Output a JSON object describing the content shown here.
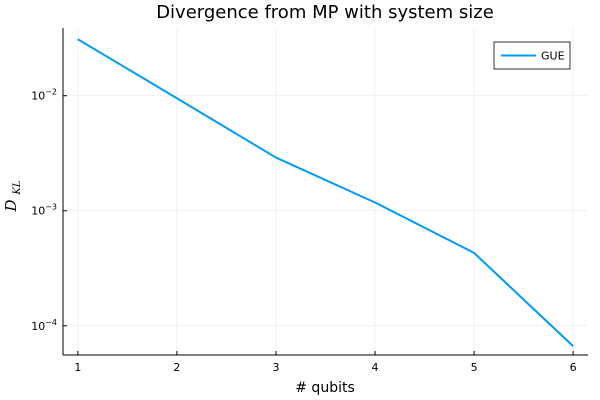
{
  "chart_data": {
    "type": "line",
    "title": "Divergence from MP with system size",
    "xlabel": "# qubits",
    "ylabel": "D_{KL}",
    "ylabel_parts": {
      "base": "D",
      "sub": "KL"
    },
    "yscale": "log",
    "x": [
      1,
      2,
      3,
      4,
      5,
      6
    ],
    "series": [
      {
        "name": "GUE",
        "color": "#009af9",
        "values": [
          0.031,
          0.0095,
          0.0029,
          0.00118,
          0.00043,
          6.65e-05
        ]
      }
    ],
    "x_ticks": [
      "1",
      "2",
      "3",
      "4",
      "5",
      "6"
    ],
    "y_ticks": [
      {
        "value": 0.01,
        "base": "10",
        "exp": "−2"
      },
      {
        "value": 0.001,
        "base": "10",
        "exp": "−3"
      },
      {
        "value": 0.0001,
        "base": "10",
        "exp": "−4"
      }
    ],
    "xlim": [
      0.85,
      6.15
    ],
    "ylim": [
      5.57e-05,
      0.0388
    ],
    "grid": true,
    "legend": "top-right"
  }
}
